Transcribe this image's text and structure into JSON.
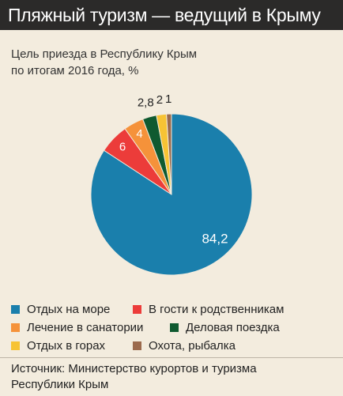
{
  "header": {
    "title": "Пляжный туризм — ведущий в Крыму"
  },
  "subtitle": {
    "line1": "Цель приезда в Республику Крым",
    "line2": "по итогам 2016 года, %"
  },
  "source": {
    "line1": "Источник: Министерство курортов и туризма",
    "line2": "Республики Крым"
  },
  "chart_data": {
    "type": "pie",
    "unit": "%",
    "slices": [
      {
        "label": "Отдых на море",
        "value": 84.2,
        "display": "84,2",
        "color": "#1a7fac"
      },
      {
        "label": "В гости к родственникам",
        "value": 6,
        "display": "6",
        "color": "#ec3c3a"
      },
      {
        "label": "Лечение в санатории",
        "value": 4,
        "display": "4",
        "color": "#f5923a"
      },
      {
        "label": "Деловая поездка",
        "value": 2.8,
        "display": "2,8",
        "color": "#0f5a30"
      },
      {
        "label": "Отдых в горах",
        "value": 2,
        "display": "2",
        "color": "#f7c334"
      },
      {
        "label": "Охота, рыбалка",
        "value": 1,
        "display": "1",
        "color": "#9b6a4d"
      }
    ]
  }
}
